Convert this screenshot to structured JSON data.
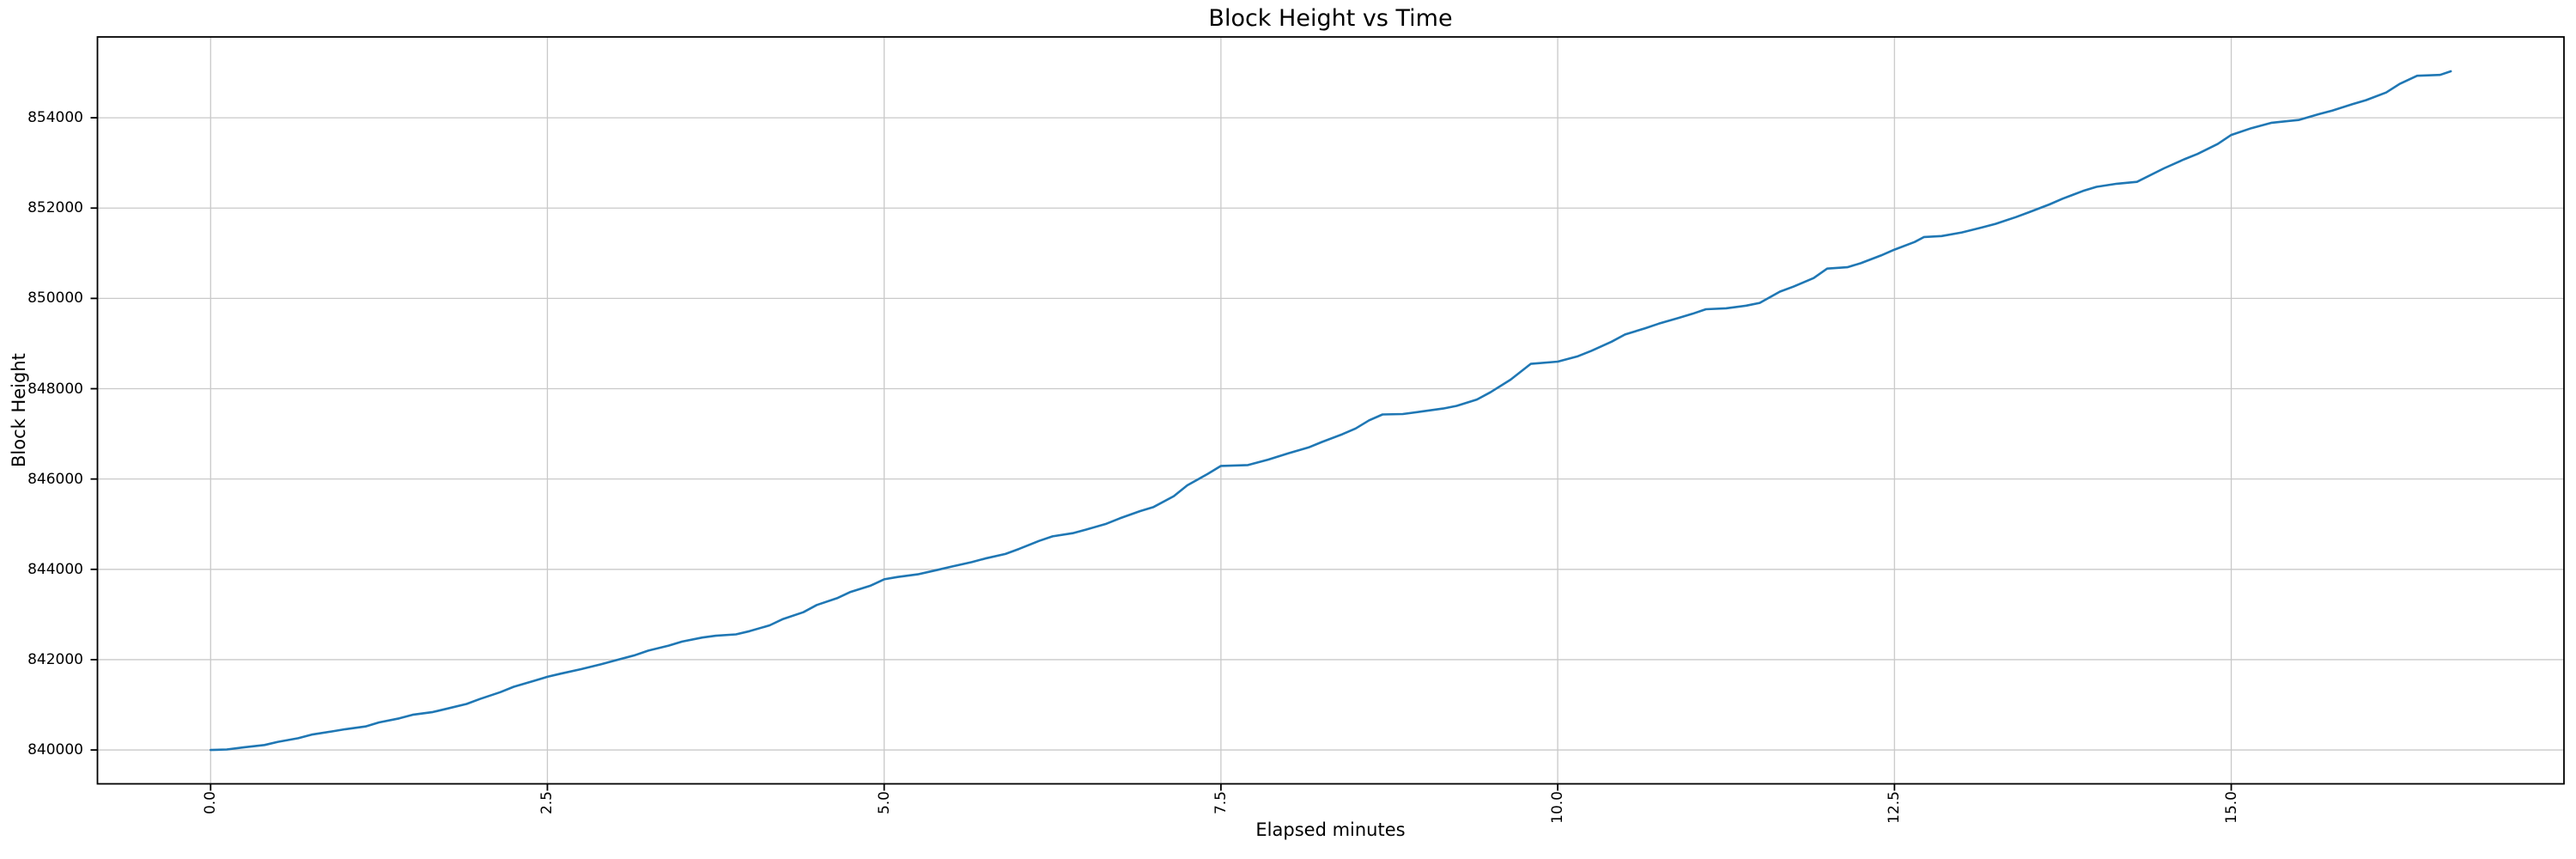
{
  "chart_data": {
    "type": "line",
    "title": "Block Height vs Time",
    "xlabel": "Elapsed minutes",
    "ylabel": "Block Height",
    "x_tick_labels": [
      "0.0",
      "2.5",
      "5.0",
      "7.5",
      "10.0",
      "12.5",
      "15.0"
    ],
    "x_tick_values": [
      0,
      2.5,
      5,
      7.5,
      10,
      12.5,
      15
    ],
    "y_tick_labels": [
      "840000",
      "842000",
      "844000",
      "846000",
      "848000",
      "850000",
      "852000",
      "854000"
    ],
    "y_tick_values": [
      840000,
      842000,
      844000,
      846000,
      848000,
      850000,
      852000,
      854000
    ],
    "xlim": [
      -0.84,
      17.47
    ],
    "ylim": [
      839250,
      855790
    ],
    "grid": true,
    "legend": null,
    "line_color": "#1f77b4",
    "grid_color": "#c9c9c9",
    "spine_color": "#000000",
    "background_color": "#ffffff",
    "points": [
      [
        0.0,
        840000
      ],
      [
        0.12,
        840010
      ],
      [
        0.25,
        840060
      ],
      [
        0.4,
        840110
      ],
      [
        0.5,
        840180
      ],
      [
        0.65,
        840260
      ],
      [
        0.75,
        840340
      ],
      [
        0.9,
        840410
      ],
      [
        1.0,
        840460
      ],
      [
        1.15,
        840520
      ],
      [
        1.25,
        840610
      ],
      [
        1.4,
        840700
      ],
      [
        1.5,
        840780
      ],
      [
        1.65,
        840840
      ],
      [
        1.75,
        840910
      ],
      [
        1.9,
        841020
      ],
      [
        2.0,
        841130
      ],
      [
        2.15,
        841280
      ],
      [
        2.25,
        841400
      ],
      [
        2.4,
        841530
      ],
      [
        2.5,
        841620
      ],
      [
        2.6,
        841690
      ],
      [
        2.75,
        841790
      ],
      [
        2.9,
        841900
      ],
      [
        3.0,
        841980
      ],
      [
        3.15,
        842100
      ],
      [
        3.25,
        842200
      ],
      [
        3.4,
        842310
      ],
      [
        3.5,
        842400
      ],
      [
        3.65,
        842490
      ],
      [
        3.75,
        842530
      ],
      [
        3.9,
        842560
      ],
      [
        4.0,
        842630
      ],
      [
        4.15,
        842760
      ],
      [
        4.25,
        842900
      ],
      [
        4.4,
        843050
      ],
      [
        4.5,
        843210
      ],
      [
        4.65,
        843360
      ],
      [
        4.75,
        843500
      ],
      [
        4.9,
        843640
      ],
      [
        5.0,
        843780
      ],
      [
        5.1,
        843830
      ],
      [
        5.25,
        843890
      ],
      [
        5.4,
        843990
      ],
      [
        5.5,
        844060
      ],
      [
        5.65,
        844160
      ],
      [
        5.75,
        844240
      ],
      [
        5.9,
        844340
      ],
      [
        6.0,
        844450
      ],
      [
        6.15,
        844630
      ],
      [
        6.25,
        844730
      ],
      [
        6.4,
        844800
      ],
      [
        6.5,
        844880
      ],
      [
        6.65,
        845010
      ],
      [
        6.75,
        845130
      ],
      [
        6.9,
        845290
      ],
      [
        7.0,
        845380
      ],
      [
        7.15,
        845620
      ],
      [
        7.25,
        845860
      ],
      [
        7.4,
        846110
      ],
      [
        7.5,
        846290
      ],
      [
        7.7,
        846310
      ],
      [
        7.85,
        846430
      ],
      [
        8.0,
        846570
      ],
      [
        8.15,
        846700
      ],
      [
        8.25,
        846820
      ],
      [
        8.4,
        846990
      ],
      [
        8.5,
        847120
      ],
      [
        8.6,
        847300
      ],
      [
        8.7,
        847430
      ],
      [
        8.85,
        847440
      ],
      [
        9.0,
        847500
      ],
      [
        9.15,
        847560
      ],
      [
        9.25,
        847620
      ],
      [
        9.4,
        847760
      ],
      [
        9.5,
        847920
      ],
      [
        9.65,
        848200
      ],
      [
        9.8,
        848550
      ],
      [
        10.0,
        848600
      ],
      [
        10.15,
        848720
      ],
      [
        10.25,
        848840
      ],
      [
        10.4,
        849040
      ],
      [
        10.5,
        849200
      ],
      [
        10.65,
        849340
      ],
      [
        10.75,
        849440
      ],
      [
        10.9,
        849570
      ],
      [
        11.0,
        849660
      ],
      [
        11.1,
        849760
      ],
      [
        11.25,
        849780
      ],
      [
        11.4,
        849840
      ],
      [
        11.5,
        849900
      ],
      [
        11.65,
        850150
      ],
      [
        11.75,
        850260
      ],
      [
        11.9,
        850450
      ],
      [
        12.0,
        850660
      ],
      [
        12.15,
        850690
      ],
      [
        12.25,
        850780
      ],
      [
        12.4,
        850950
      ],
      [
        12.5,
        851080
      ],
      [
        12.65,
        851250
      ],
      [
        12.72,
        851360
      ],
      [
        12.85,
        851380
      ],
      [
        13.0,
        851460
      ],
      [
        13.15,
        851570
      ],
      [
        13.25,
        851650
      ],
      [
        13.4,
        851800
      ],
      [
        13.5,
        851910
      ],
      [
        13.65,
        852080
      ],
      [
        13.75,
        852210
      ],
      [
        13.9,
        852380
      ],
      [
        14.0,
        852470
      ],
      [
        14.15,
        852540
      ],
      [
        14.3,
        852580
      ],
      [
        14.5,
        852880
      ],
      [
        14.65,
        853080
      ],
      [
        14.75,
        853200
      ],
      [
        14.9,
        853420
      ],
      [
        15.0,
        853620
      ],
      [
        15.15,
        853770
      ],
      [
        15.3,
        853890
      ],
      [
        15.5,
        853950
      ],
      [
        15.65,
        854080
      ],
      [
        15.75,
        854160
      ],
      [
        15.9,
        854300
      ],
      [
        16.0,
        854390
      ],
      [
        16.15,
        854560
      ],
      [
        16.25,
        854750
      ],
      [
        16.38,
        854930
      ],
      [
        16.55,
        854950
      ],
      [
        16.63,
        855030
      ]
    ]
  }
}
